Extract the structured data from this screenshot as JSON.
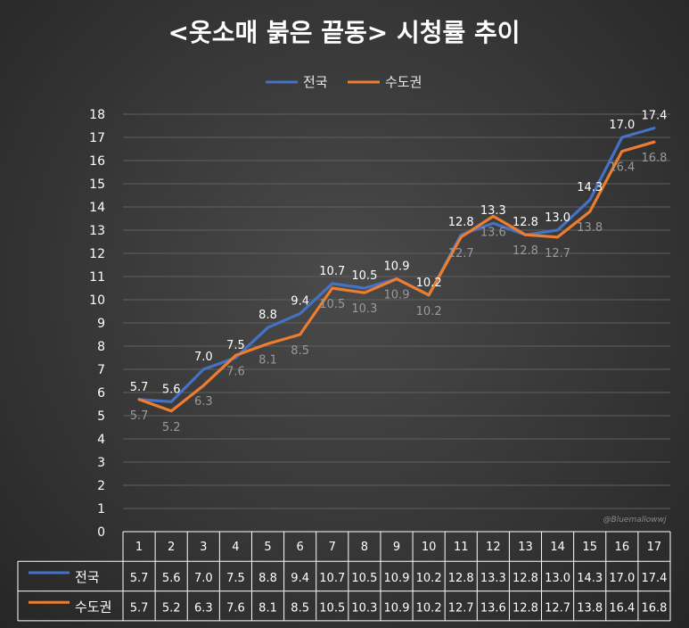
{
  "chart_data": {
    "type": "line",
    "title": "<옷소매 붉은 끝동> 시청률 추이",
    "categories": [
      "1",
      "2",
      "3",
      "4",
      "5",
      "6",
      "7",
      "8",
      "9",
      "10",
      "11",
      "12",
      "13",
      "14",
      "15",
      "16",
      "17"
    ],
    "series": [
      {
        "name": "전국",
        "color": "#4472c4",
        "values": [
          5.7,
          5.6,
          7.0,
          7.5,
          8.8,
          9.4,
          10.7,
          10.5,
          10.9,
          10.2,
          12.8,
          13.3,
          12.8,
          13.0,
          14.3,
          17.0,
          17.4
        ]
      },
      {
        "name": "수도권",
        "color": "#ed7d31",
        "values": [
          5.7,
          5.2,
          6.3,
          7.6,
          8.1,
          8.5,
          10.5,
          10.3,
          10.9,
          10.2,
          12.7,
          13.6,
          12.8,
          12.7,
          13.8,
          16.4,
          16.8
        ]
      }
    ],
    "ylim": [
      0,
      18
    ],
    "yticks": [
      "0",
      "1",
      "2",
      "3",
      "4",
      "5",
      "6",
      "7",
      "8",
      "9",
      "10",
      "11",
      "12",
      "13",
      "14",
      "15",
      "16",
      "17",
      "18"
    ],
    "grid": true,
    "legend": "top-center",
    "data_table": true,
    "watermark": "@Bluemallowwj"
  }
}
